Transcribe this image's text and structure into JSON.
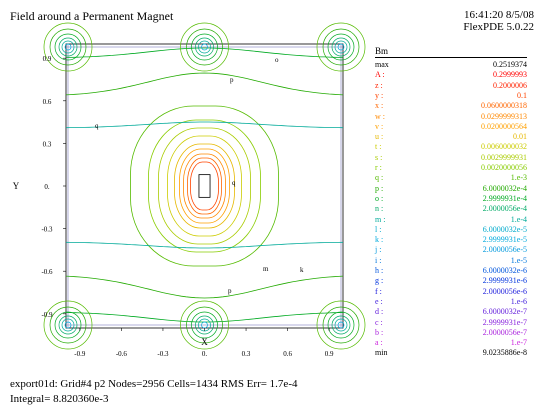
{
  "header": {
    "title": "Field around a Permanent Magnet",
    "time_date": "16:41:20 8/5/08",
    "software": "FlexPDE 5.0.22"
  },
  "footer": {
    "line1": "export01d:  Grid#4  p2  Nodes=2956 Cells=1434 RMS Err= 1.7e-4",
    "line2": "Integral=  8.820360e-3"
  },
  "chart_data": {
    "type": "contour",
    "title": "Field around a Permanent Magnet",
    "variable": "Bm",
    "xlabel": "X",
    "ylabel": "Y",
    "xlim": [
      -1.0,
      1.0
    ],
    "ylim": [
      -1.0,
      1.0
    ],
    "xticks": [
      "-0.9",
      "-0.6",
      "-0.3",
      "0.",
      "0.3",
      "0.6",
      "0.9"
    ],
    "yticks": [
      "0.9",
      "0.6",
      "0.3",
      "0.",
      "-0.3",
      "-0.6",
      "-0.9"
    ],
    "magnet": {
      "x": [
        -0.04,
        0.04
      ],
      "y": [
        -0.08,
        0.08
      ]
    },
    "contour_labels": [
      "q",
      "p",
      "m",
      "k",
      "o"
    ],
    "legend": {
      "title": "Bm",
      "max": "0.2519374",
      "min": "9.0235886e-8",
      "levels": [
        {
          "label": "A",
          "value": "0.2999993",
          "color": "#ff0000"
        },
        {
          "label": "z",
          "value": "0.2000006",
          "color": "#ff2200"
        },
        {
          "label": "y",
          "value": "0.1",
          "color": "#ff4400"
        },
        {
          "label": "x",
          "value": "0.0600000318",
          "color": "#ff6600"
        },
        {
          "label": "w",
          "value": "0.0299999313",
          "color": "#ff8800"
        },
        {
          "label": "v",
          "value": "0.0200000564",
          "color": "#ffa000"
        },
        {
          "label": "u",
          "value": "0.01",
          "color": "#e6b800"
        },
        {
          "label": "t",
          "value": "0.0060000032",
          "color": "#cccc00"
        },
        {
          "label": "s",
          "value": "0.0029999931",
          "color": "#aacc00"
        },
        {
          "label": "r",
          "value": "0.0020000056",
          "color": "#88cc00"
        },
        {
          "label": "q",
          "value": "1.e-3",
          "color": "#55bb00"
        },
        {
          "label": "p",
          "value": "6.0000032e-4",
          "color": "#22aa00"
        },
        {
          "label": "o",
          "value": "2.9999931e-4",
          "color": "#00aa22"
        },
        {
          "label": "n",
          "value": "2.0000056e-4",
          "color": "#00aa66"
        },
        {
          "label": "m",
          "value": "1.e-4",
          "color": "#00aa99"
        },
        {
          "label": "l",
          "value": "6.0000032e-5",
          "color": "#00aacc"
        },
        {
          "label": "k",
          "value": "2.9999931e-5",
          "color": "#00aadd"
        },
        {
          "label": "j",
          "value": "2.0000056e-5",
          "color": "#0099dd"
        },
        {
          "label": "i",
          "value": "1.e-5",
          "color": "#0077dd"
        },
        {
          "label": "h",
          "value": "6.0000032e-6",
          "color": "#0055dd"
        },
        {
          "label": "g",
          "value": "2.9999931e-6",
          "color": "#0033dd"
        },
        {
          "label": "f",
          "value": "2.0000056e-6",
          "color": "#2222dd"
        },
        {
          "label": "e",
          "value": "1.e-6",
          "color": "#4422dd"
        },
        {
          "label": "d",
          "value": "6.0000032e-7",
          "color": "#6622dd"
        },
        {
          "label": "c",
          "value": "2.9999931e-7",
          "color": "#8822dd"
        },
        {
          "label": "b",
          "value": "2.0000056e-7",
          "color": "#aa22dd"
        },
        {
          "label": "a",
          "value": "1.e-7",
          "color": "#cc22dd"
        }
      ]
    }
  }
}
